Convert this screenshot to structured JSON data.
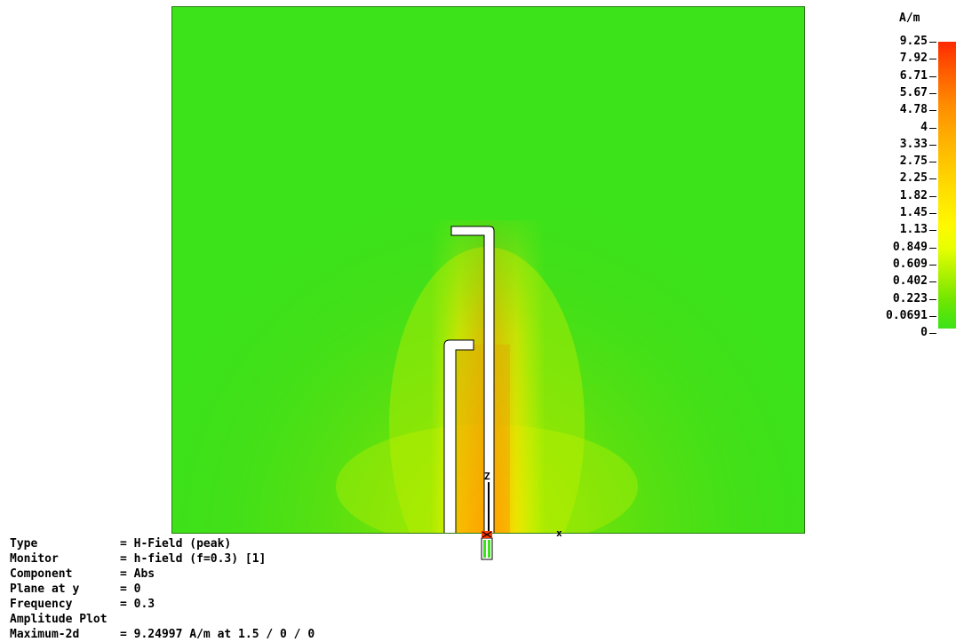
{
  "plot": {
    "axis_label_z": "Z",
    "axis_label_x": "x"
  },
  "legend": {
    "unit": "A/m",
    "ticks": [
      "9.25",
      "7.92",
      "6.71",
      "5.67",
      "4.78",
      "4",
      "3.33",
      "2.75",
      "2.25",
      "1.82",
      "1.45",
      "1.13",
      "0.849",
      "0.609",
      "0.402",
      "0.223",
      "0.0691",
      "0"
    ],
    "colors": {
      "max": "#ff2a00",
      "mid": "#fff800",
      "min": "#3ce21a"
    }
  },
  "info": {
    "type_key": "Type",
    "type_val": "= H-Field (peak)",
    "monitor_key": "Monitor",
    "monitor_val": "= h-field (f=0.3) [1]",
    "component_key": "Component",
    "component_val": "= Abs",
    "plane_key": "Plane at y",
    "plane_val": "= 0",
    "frequency_key": "Frequency",
    "frequency_val": "= 0.3",
    "amplitude": "Amplitude Plot",
    "max_key": "Maximum-2d",
    "max_val": "= 9.24997 A/m at 1.5 / 0 / 0"
  }
}
